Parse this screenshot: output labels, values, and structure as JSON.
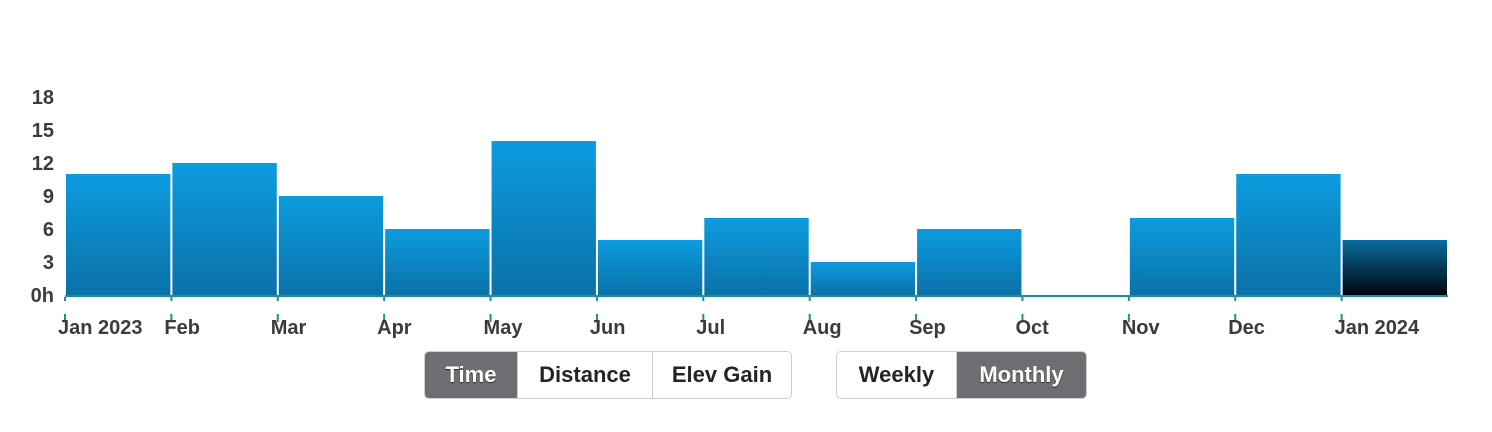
{
  "chart_data": {
    "type": "bar",
    "categories": [
      "Jan 2023",
      "Feb",
      "Mar",
      "Apr",
      "May",
      "Jun",
      "Jul",
      "Aug",
      "Sep",
      "Oct",
      "Nov",
      "Dec",
      "Jan 2024"
    ],
    "values": [
      11,
      12,
      9,
      6,
      14,
      5,
      7,
      3,
      6,
      0,
      7,
      11,
      5
    ],
    "y_ticks": [
      "0h",
      "3",
      "6",
      "9",
      "12",
      "15",
      "18"
    ],
    "ylim": [
      0,
      18
    ],
    "ylabel": "",
    "xlabel": "",
    "title": "",
    "grid": false,
    "colors": {
      "bar_top": "#0c9ce0",
      "bar_bottom": "#0b71a8",
      "current_bar_top": "#0a6d9e",
      "current_bar_bottom": "#00060d",
      "axis_line": "#1a8f96"
    }
  },
  "metric_toggle": {
    "options": [
      "Time",
      "Distance",
      "Elev Gain"
    ],
    "selected": "Time"
  },
  "period_toggle": {
    "options": [
      "Weekly",
      "Monthly"
    ],
    "selected": "Monthly"
  }
}
